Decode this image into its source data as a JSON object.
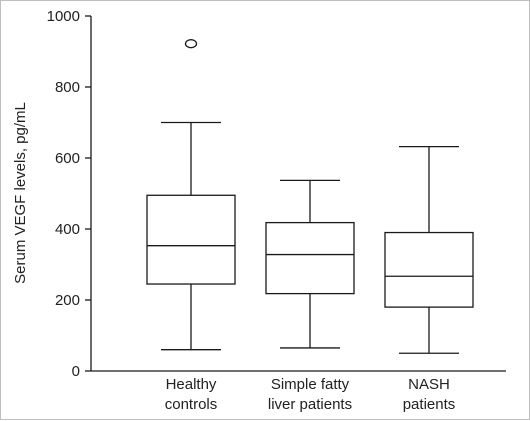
{
  "chart_data": {
    "type": "boxplot",
    "title": "",
    "xlabel": "",
    "ylabel": "Serum VEGF levels, pg/mL",
    "ylim": [
      0,
      1000
    ],
    "yticks": [
      0,
      200,
      400,
      600,
      800,
      1000
    ],
    "grid": false,
    "categories": [
      [
        "Healthy",
        "controls"
      ],
      [
        "Simple fatty",
        "liver patients"
      ],
      [
        "NASH",
        "patients"
      ]
    ],
    "boxes": [
      {
        "whisker_low": 60,
        "q1": 245,
        "median": 353,
        "q3": 495,
        "whisker_high": 700,
        "outliers": [
          922
        ]
      },
      {
        "whisker_low": 65,
        "q1": 218,
        "median": 328,
        "q3": 418,
        "whisker_high": 537,
        "outliers": []
      },
      {
        "whisker_low": 50,
        "q1": 180,
        "median": 267,
        "q3": 390,
        "whisker_high": 632,
        "outliers": []
      }
    ],
    "colors": {
      "stroke": "#1a1a1a",
      "text": "#222222"
    }
  }
}
